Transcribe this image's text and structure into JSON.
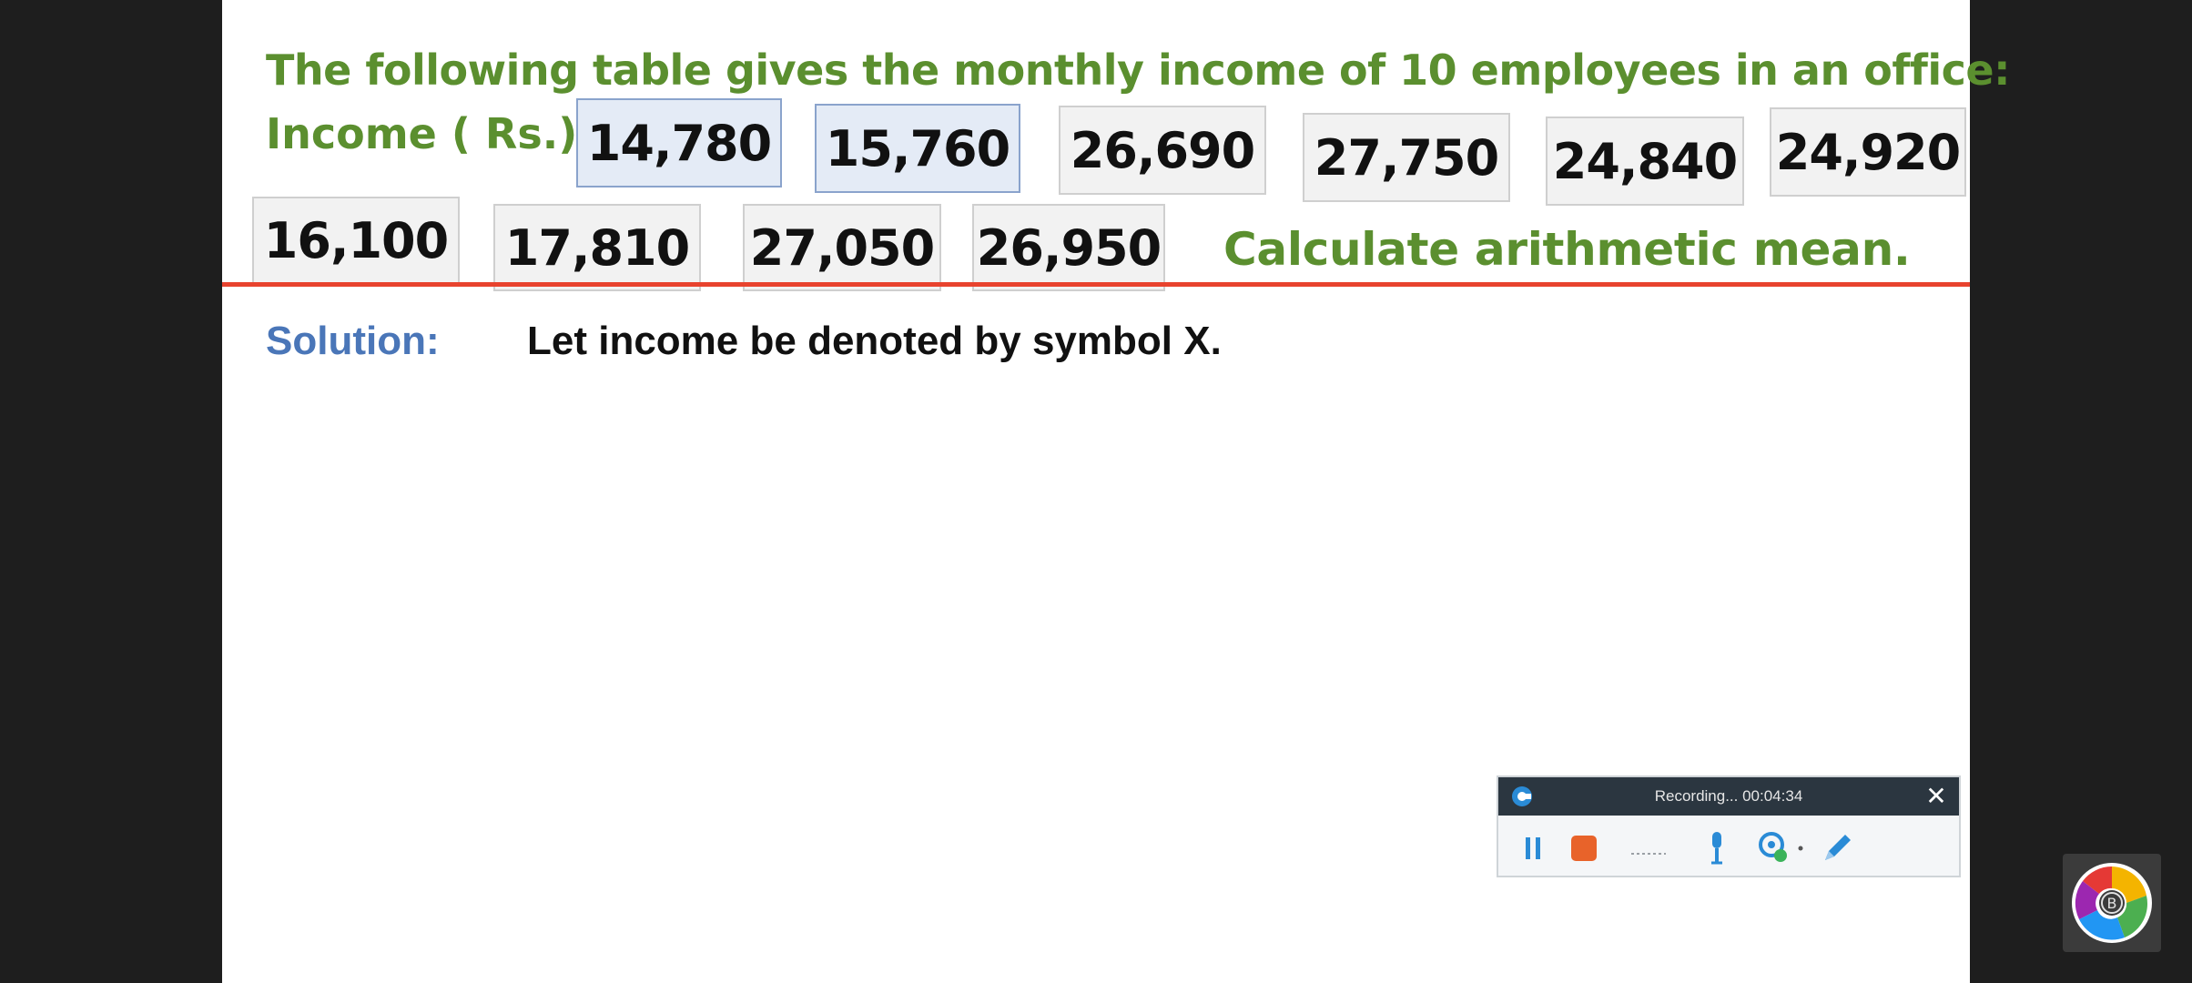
{
  "slide": {
    "title": "The following table gives the monthly income of 10 employees in an office:",
    "income_label": "Income ( Rs.)",
    "incomes": [
      "14,780",
      "15,760",
      "26,690",
      "27,750",
      "24,840",
      "24,920",
      "16,100",
      "17,810",
      "27,050",
      "26,950"
    ],
    "task": "Calculate arithmetic mean.",
    "solution_label": "Solution:",
    "solution_text": "Let income be denoted by symbol X."
  },
  "recorder": {
    "status": "Recording... 00:04:34",
    "icons": [
      "recorder-logo-icon",
      "pause-icon",
      "stop-icon",
      "audio-level-icon",
      "microphone-icon",
      "webcam-icon",
      "dropdown-icon",
      "pen-icon",
      "close-icon"
    ],
    "accent": "#2a8bd6",
    "stop_color": "#e8632a"
  },
  "colors": {
    "heading_green": "#5b8f2f",
    "solution_blue": "#4a76b8",
    "divider_red": "#e8432e"
  }
}
